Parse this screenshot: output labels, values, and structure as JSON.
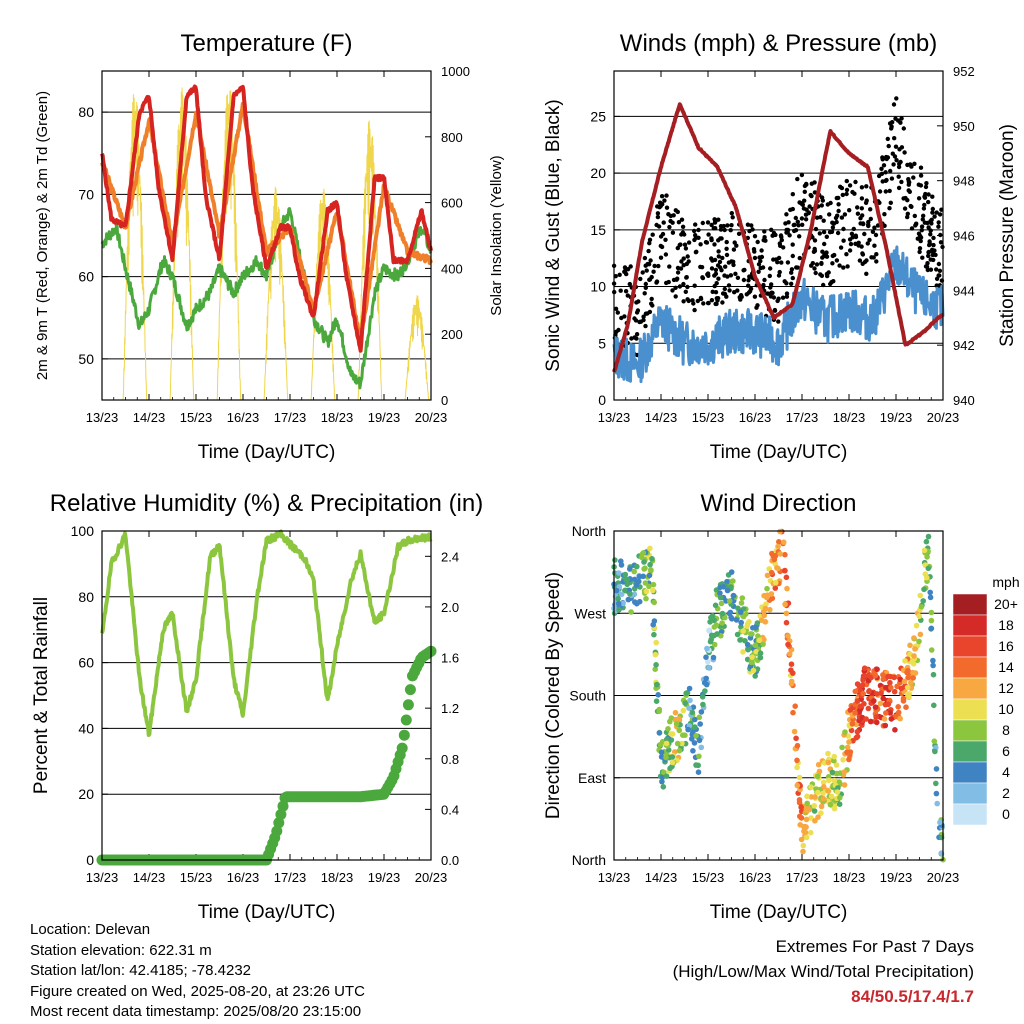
{
  "x_ticks": [
    "13/23",
    "14/23",
    "15/23",
    "16/23",
    "17/23",
    "18/23",
    "19/23",
    "20/23"
  ],
  "chart_data": [
    {
      "type": "line",
      "title": "Temperature (F)",
      "xlabel": "Time (Day/UTC)",
      "ylabel": "2m & 9m T (Red, Orange) & 2m Td (Green)",
      "ylabel_right": "Solar Insolation (Yellow)",
      "ylim": [
        45,
        85
      ],
      "ylim_right": [
        0,
        1000
      ],
      "yticks": [
        "50",
        "60",
        "70",
        "80"
      ],
      "yticks_right": [
        "0",
        "200",
        "400",
        "600",
        "800",
        "1000"
      ],
      "series": [
        {
          "color": "#d62420",
          "x": [
            0,
            0.2,
            0.5,
            0.8,
            1.0,
            1.2,
            1.5,
            1.8,
            2.0,
            2.2,
            2.5,
            2.8,
            3.0,
            3.2,
            3.5,
            3.8,
            4.0,
            4.2,
            4.5,
            4.8,
            5.0,
            5.2,
            5.5,
            5.8,
            6.0,
            6.2,
            6.5,
            6.8,
            7.0
          ],
          "values": [
            75,
            67,
            66,
            80,
            82,
            71,
            62,
            82,
            83,
            70,
            62,
            82,
            83,
            71,
            61,
            66,
            66,
            60,
            55,
            68,
            69,
            60,
            51,
            72,
            72,
            62,
            62,
            68,
            63
          ]
        },
        {
          "color": "#f07f2a",
          "x": [
            0,
            0.5,
            1.0,
            1.5,
            2.0,
            2.5,
            3.0,
            3.5,
            4.0,
            4.5,
            5.0,
            5.5,
            6.0,
            6.5,
            7.0
          ],
          "values": [
            74,
            66,
            79,
            64,
            80,
            65,
            81,
            63,
            66,
            56,
            68,
            52,
            71,
            63,
            62
          ]
        },
        {
          "color": "#4aa83c",
          "x": [
            0,
            0.3,
            0.5,
            0.8,
            1.0,
            1.3,
            1.5,
            1.8,
            2.0,
            2.3,
            2.5,
            2.8,
            3.0,
            3.3,
            3.5,
            3.8,
            4.0,
            4.3,
            4.5,
            4.8,
            5.0,
            5.3,
            5.5,
            5.8,
            6.0,
            6.3,
            6.5,
            6.8,
            7.0
          ],
          "values": [
            64,
            66,
            61,
            54,
            56,
            62,
            60,
            54,
            56,
            58,
            61,
            58,
            60,
            62,
            60,
            66,
            68,
            60,
            55,
            52,
            55,
            48,
            47,
            58,
            61,
            60,
            62,
            66,
            63
          ]
        },
        {
          "color": "#f0d64a",
          "axis": "right",
          "x": [
            0.2,
            0.5,
            0.8,
            1.2,
            1.5,
            1.8,
            2.2,
            2.5,
            2.8,
            3.2,
            3.5,
            3.8,
            4.2,
            4.5,
            4.8,
            5.2,
            5.5,
            5.8,
            6.2,
            6.5,
            6.8
          ],
          "values": [
            0,
            950,
            0,
            0,
            950,
            0,
            0,
            970,
            0,
            0,
            650,
            0,
            0,
            650,
            0,
            0,
            860,
            0,
            0,
            320,
            0
          ]
        }
      ]
    },
    {
      "type": "line",
      "title": "Winds (mph) & Pressure (mb)",
      "xlabel": "Time (Day/UTC)",
      "ylabel": "Sonic Wind & Gust (Blue, Black)",
      "ylabel_right": "Station Pressure (Maroon)",
      "ylim": [
        0,
        29
      ],
      "ylim_right": [
        940,
        952
      ],
      "yticks": [
        "0",
        "5",
        "10",
        "15",
        "20",
        "25"
      ],
      "yticks_right": [
        "940",
        "942",
        "944",
        "946",
        "948",
        "950",
        "952"
      ],
      "series": [
        {
          "color": "#4a90cf",
          "x": [
            0,
            0.5,
            1.0,
            1.5,
            2.0,
            2.5,
            3.0,
            3.5,
            4.0,
            4.5,
            5.0,
            5.5,
            6.0,
            6.5,
            7.0
          ],
          "values": [
            4,
            3,
            7,
            5,
            5,
            6,
            6,
            5,
            9,
            7,
            8,
            7,
            12,
            9,
            8
          ]
        },
        {
          "color": "#000000",
          "x": [
            0,
            0.5,
            1.0,
            1.5,
            2.0,
            2.5,
            3.0,
            3.5,
            4.0,
            4.5,
            5.0,
            5.5,
            6.0,
            6.5,
            7.0
          ],
          "values": [
            8,
            7,
            14,
            11,
            11,
            12,
            11,
            10,
            16,
            13,
            15,
            14,
            22,
            16,
            12
          ]
        },
        {
          "color": "#a51e22",
          "axis": "right",
          "x": [
            0,
            0.3,
            0.6,
            1.0,
            1.4,
            1.8,
            2.2,
            2.6,
            3.0,
            3.4,
            3.8,
            4.2,
            4.6,
            5.0,
            5.4,
            5.8,
            6.2,
            6.6,
            6.9,
            7.0
          ],
          "values": [
            941,
            942.8,
            945.8,
            948.5,
            950.8,
            949.2,
            948.5,
            947,
            944.5,
            943,
            943.5,
            946.3,
            949.8,
            949,
            948.5,
            945.5,
            942,
            942.5,
            943,
            943.1
          ]
        }
      ]
    },
    {
      "type": "line",
      "title": "Relative Humidity (%) & Precipitation (in)",
      "xlabel": "Time (Day/UTC)",
      "ylabel": "Percent & Total Rainfall",
      "ylim": [
        0,
        100
      ],
      "ylim_right": [
        0,
        2.6
      ],
      "yticks": [
        "0",
        "20",
        "40",
        "60",
        "80",
        "100"
      ],
      "yticks_right": [
        "0.0",
        "0.4",
        "0.8",
        "1.2",
        "1.6",
        "2.0",
        "2.4"
      ],
      "series": [
        {
          "color": "#8cc63f",
          "x": [
            0,
            0.2,
            0.5,
            0.8,
            1.0,
            1.3,
            1.5,
            1.8,
            2.0,
            2.3,
            2.5,
            2.8,
            3.0,
            3.3,
            3.5,
            3.8,
            4.0,
            4.3,
            4.5,
            4.8,
            5.0,
            5.3,
            5.5,
            5.8,
            6.0,
            6.3,
            6.5,
            6.8,
            7.0
          ],
          "values": [
            68,
            90,
            99,
            55,
            38,
            70,
            75,
            45,
            55,
            92,
            96,
            55,
            44,
            80,
            97,
            99,
            96,
            92,
            85,
            48,
            65,
            85,
            93,
            72,
            75,
            95,
            97,
            98,
            98
          ]
        },
        {
          "color": "#4aa83c",
          "axis": "right",
          "x": [
            0,
            1,
            2,
            3,
            3.5,
            3.7,
            3.9,
            4.5,
            5.0,
            5.5,
            6.0,
            6.2,
            6.4,
            6.6,
            6.8,
            7.0
          ],
          "values": [
            0,
            0,
            0,
            0,
            0,
            0.2,
            0.5,
            0.5,
            0.5,
            0.5,
            0.52,
            0.65,
            0.9,
            1.45,
            1.6,
            1.65
          ]
        }
      ]
    },
    {
      "type": "scatter",
      "title": "Wind Direction",
      "xlabel": "Time (Day/UTC)",
      "ylabel": "Direction (Colored By Speed)",
      "ylim": [
        0,
        360
      ],
      "yticks": [
        "North",
        "East",
        "South",
        "West",
        "North"
      ],
      "legend": {
        "title": "mph",
        "labels": [
          "20+",
          "18",
          "16",
          "14",
          "12",
          "10",
          "8",
          "6",
          "4",
          "2",
          "0"
        ],
        "colors": [
          "#a51e22",
          "#d42a28",
          "#e9452c",
          "#f36b2c",
          "#f8a840",
          "#ece052",
          "#8cc63f",
          "#4aa86a",
          "#3f83c3",
          "#82bde6",
          "#c7e4f7"
        ]
      },
      "series": [
        {
          "x": [
            0.2,
            0.4,
            0.6,
            0.8,
            1.0,
            1.2,
            1.4,
            1.6,
            1.8,
            2.0,
            2.2,
            2.5,
            2.8,
            3.0,
            3.3,
            3.6,
            4.0,
            4.2,
            4.5,
            4.8,
            5.0,
            5.3,
            5.6,
            6.0,
            6.4,
            6.7,
            6.9
          ],
          "values": [
            300,
            290,
            310,
            320,
            100,
            130,
            140,
            160,
            120,
            220,
            270,
            290,
            250,
            220,
            300,
            340,
            30,
            60,
            90,
            80,
            140,
            180,
            180,
            170,
            220,
            350,
            20
          ],
          "speeds": [
            4,
            5,
            6,
            8,
            6,
            8,
            10,
            4,
            6,
            3,
            7,
            5,
            8,
            6,
            12,
            14,
            13,
            9,
            11,
            7,
            12,
            17,
            15,
            16,
            10,
            7,
            5
          ]
        }
      ]
    }
  ],
  "info": {
    "location": "Location: Delevan",
    "elevation": "Station elevation: 622.31 m",
    "latlon": "Station lat/lon: 42.4185; -78.4232",
    "created": "Figure created on Wed, 2025-08-20, at 23:26 UTC",
    "recent": "Most recent data timestamp: 2025/08/20 23:15:00"
  },
  "extremes": {
    "title": "Extremes For Past 7 Days",
    "subtitle": "(High/Low/Max Wind/Total Precipitation)",
    "values": "84/50.5/17.4/1.7"
  }
}
